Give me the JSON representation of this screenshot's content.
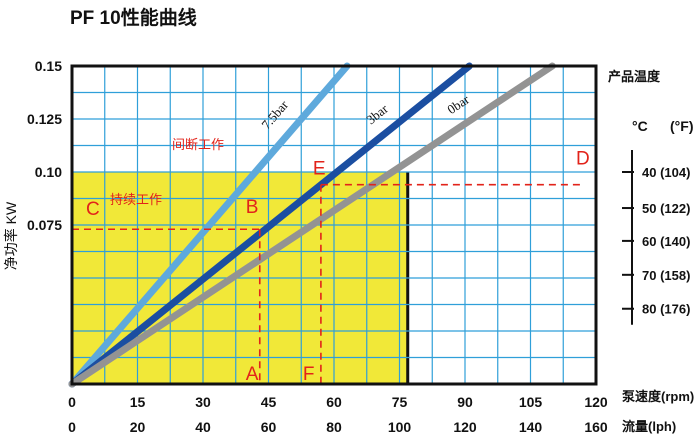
{
  "chart_data": {
    "type": "line",
    "title": "PF 10性能曲线",
    "ylabel": "净功率 KW",
    "ylim": [
      0,
      0.15
    ],
    "yticks": [
      "0.075",
      "0.10",
      "0.125",
      "0.15"
    ],
    "xlim": [
      0,
      120
    ],
    "x_axis_primary": {
      "label": "泵速度(rpm)",
      "ticks": [
        "0",
        "15",
        "30",
        "45",
        "60",
        "75",
        "90",
        "105",
        "120"
      ]
    },
    "x_axis_secondary": {
      "label": "流量(lph)",
      "ticks": [
        "0",
        "20",
        "40",
        "60",
        "80",
        "100",
        "120",
        "140",
        "160"
      ]
    },
    "grid": true,
    "series": [
      {
        "name": "7.5bar",
        "color": "#5ea9dc",
        "x": [
          0,
          63
        ],
        "y": [
          0,
          0.15
        ]
      },
      {
        "name": "3bar",
        "color": "#1b4ea1",
        "x": [
          0,
          91
        ],
        "y": [
          0,
          0.15
        ]
      },
      {
        "name": "0bar",
        "color": "#939393",
        "x": [
          0,
          110
        ],
        "y": [
          0,
          0.15
        ]
      }
    ],
    "regions": [
      {
        "label": "间断工作",
        "color": "#ffffff"
      },
      {
        "label": "持续工作",
        "color": "#f1e838",
        "x": [
          0,
          77
        ],
        "y": [
          0,
          0.1
        ]
      }
    ],
    "points": [
      {
        "label": "A",
        "x": 43,
        "y": 0
      },
      {
        "label": "B",
        "x": 43,
        "y": 0.073
      },
      {
        "label": "C",
        "x": 0,
        "y": 0.073
      },
      {
        "label": "D",
        "x": 120,
        "y": 0.094
      },
      {
        "label": "E",
        "x": 57,
        "y": 0.094
      },
      {
        "label": "F",
        "x": 57,
        "y": 0
      }
    ],
    "temperature_scale": {
      "title": "产品温度",
      "header_c": "°C",
      "header_f": "(°F)",
      "ticks": [
        {
          "label": "40 (104)",
          "y": 0.1
        },
        {
          "label": "50 (122)",
          "y": 0.083
        },
        {
          "label": "60 (140)",
          "y": 0.0675
        },
        {
          "label": "70 (158)",
          "y": 0.0515
        },
        {
          "label": "80 (176)",
          "y": 0.0355
        }
      ]
    }
  }
}
